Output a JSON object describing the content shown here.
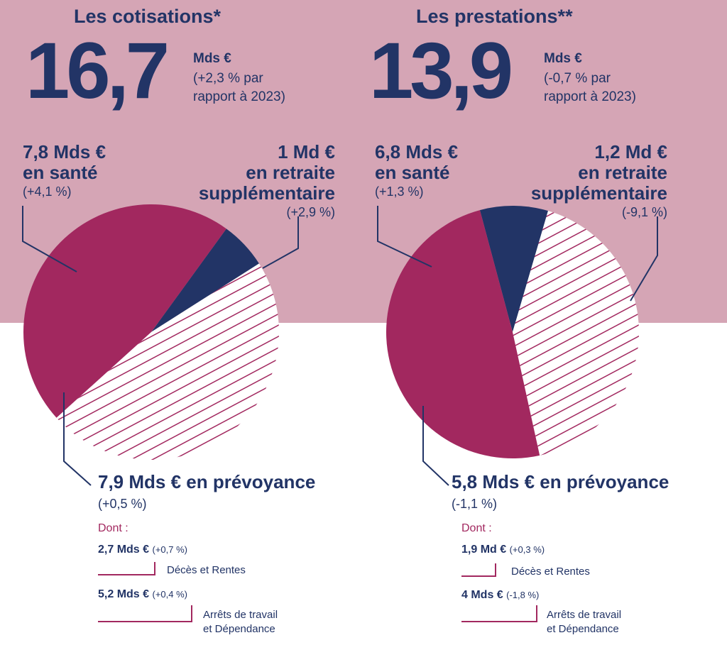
{
  "colors": {
    "band": "#d5a5b5",
    "navy": "#223466",
    "magenta": "#a2285f",
    "hatch": "#a2285f"
  },
  "chart_data": [
    {
      "type": "pie",
      "title": "Les cotisations*",
      "total": {
        "value": "16,7",
        "unit": "Mds €",
        "change": "(+2,3 % par",
        "change2": "rapport à 2023)"
      },
      "slices": [
        {
          "name": "santé",
          "value": 7.8,
          "color": "#a2285f",
          "style": "solid",
          "amount_label": "7,8 Mds €",
          "name_label": "en santé",
          "change": "(+4,1 %)"
        },
        {
          "name": "retraite supplémentaire",
          "value": 1.0,
          "color": "#223466",
          "style": "solid",
          "amount_label": "1 Md €",
          "name_label": "en retraite",
          "name_label2": "supplémentaire",
          "change": "(+2,9 %)"
        },
        {
          "name": "prévoyance",
          "value": 7.9,
          "color": "#a2285f",
          "style": "hatched",
          "amount_label": "7,9 Mds € en prévoyance",
          "change": "(+0,5 %)"
        }
      ],
      "detail": {
        "heading": "Dont :",
        "items": [
          {
            "amount": "2,7 Mds €",
            "change": "(+0,7 %)",
            "label": "Décès et Rentes"
          },
          {
            "amount": "5,2 Mds €",
            "change": "(+0,4 %)",
            "label": "Arrêts de travail",
            "label2": "et Dépendance"
          }
        ]
      }
    },
    {
      "type": "pie",
      "title": "Les prestations**",
      "total": {
        "value": "13,9",
        "unit": "Mds €",
        "change": "(-0,7 % par",
        "change2": "rapport à 2023)"
      },
      "slices": [
        {
          "name": "santé",
          "value": 6.8,
          "color": "#a2285f",
          "style": "solid",
          "amount_label": "6,8 Mds €",
          "name_label": "en santé",
          "change": "(+1,3 %)"
        },
        {
          "name": "retraite supplémentaire",
          "value": 1.2,
          "color": "#223466",
          "style": "solid",
          "amount_label": "1,2 Md €",
          "name_label": "en retraite",
          "name_label2": "supplémentaire",
          "change": "(-9,1 %)"
        },
        {
          "name": "prévoyance",
          "value": 5.8,
          "color": "#a2285f",
          "style": "hatched",
          "amount_label": "5,8 Mds € en prévoyance",
          "change": "(-1,1 %)"
        }
      ],
      "detail": {
        "heading": "Dont :",
        "items": [
          {
            "amount": "1,9 Md €",
            "change": "(+0,3 %)",
            "label": "Décès et Rentes"
          },
          {
            "amount": "4 Mds €",
            "change": "(-1,8 %)",
            "label": "Arrêts de travail",
            "label2": "et Dépendance"
          }
        ]
      }
    }
  ]
}
